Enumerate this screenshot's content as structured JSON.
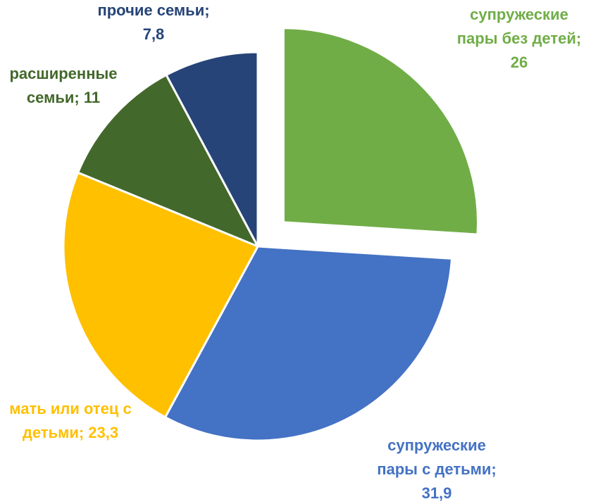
{
  "chart_data": {
    "type": "pie",
    "title": "",
    "data_labels": true,
    "legend": "none",
    "series": [
      {
        "name": "",
        "slices": [
          {
            "category": "супружеские пары без детей",
            "value": 26,
            "value_label": "26",
            "color": "#70AD47",
            "exploded": true,
            "label_lines": [
              "супружеские",
              "пары без детей;",
              "26"
            ]
          },
          {
            "category": "супружеские пары с детьми",
            "value": 31.9,
            "value_label": "31,9",
            "color": "#4472C4",
            "exploded": false,
            "label_lines": [
              "супружеские",
              "пары с детьми;",
              "31,9"
            ]
          },
          {
            "category": "мать или отец с детьми",
            "value": 23.3,
            "value_label": "23,3",
            "color": "#FFC000",
            "exploded": false,
            "label_lines": [
              "мать или отец с",
              "детьми; 23,3"
            ]
          },
          {
            "category": "расширенные семьи",
            "value": 11,
            "value_label": "11",
            "color": "#43682B",
            "exploded": false,
            "label_lines": [
              "расширенные",
              "семьи; 11"
            ]
          },
          {
            "category": "прочие семьи",
            "value": 7.8,
            "value_label": "7,8",
            "color": "#264478",
            "exploded": false,
            "label_lines": [
              "прочие семьи;",
              "7,8"
            ]
          }
        ]
      }
    ]
  }
}
